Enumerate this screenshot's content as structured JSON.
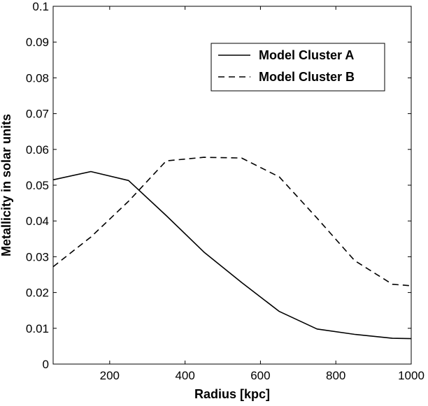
{
  "chart_data": {
    "type": "line",
    "title": "",
    "xlabel": "Radius [kpc]",
    "ylabel": "Metallicity in solar units",
    "xlim": [
      50,
      1000
    ],
    "ylim": [
      0,
      0.1
    ],
    "x_ticks": [
      200,
      400,
      600,
      800,
      1000
    ],
    "x_tick_labels": [
      "200",
      "400",
      "600",
      "800",
      "1000"
    ],
    "y_ticks": [
      0,
      0.01,
      0.02,
      0.03,
      0.04,
      0.05,
      0.06,
      0.07,
      0.08,
      0.09,
      0.1
    ],
    "y_tick_labels": [
      "0",
      "0.01",
      "0.02",
      "0.03",
      "0.04",
      "0.05",
      "0.06",
      "0.07",
      "0.08",
      "0.09",
      "0.1"
    ],
    "grid": false,
    "legend_position": "top-right",
    "series": [
      {
        "name": "Model Cluster A",
        "line_style": "solid",
        "color": "#000000",
        "x": [
          50,
          150,
          250,
          350,
          450,
          550,
          650,
          750,
          850,
          950,
          1000
        ],
        "y": [
          0.0515,
          0.0538,
          0.0513,
          0.0415,
          0.0313,
          0.0228,
          0.0147,
          0.0098,
          0.0083,
          0.0072,
          0.0071
        ]
      },
      {
        "name": "Model Cluster B",
        "line_style": "dashed",
        "color": "#000000",
        "x": [
          50,
          150,
          250,
          350,
          450,
          550,
          650,
          750,
          850,
          950,
          1000
        ],
        "y": [
          0.0272,
          0.0355,
          0.0455,
          0.0568,
          0.0578,
          0.0576,
          0.0523,
          0.0408,
          0.0289,
          0.0223,
          0.0219
        ]
      }
    ]
  }
}
